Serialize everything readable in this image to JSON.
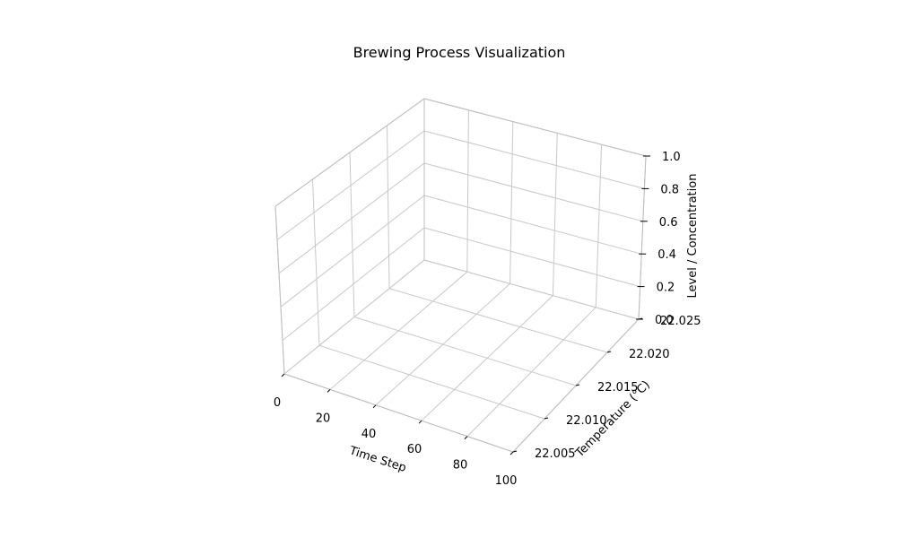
{
  "chart_data": {
    "type": "scatter",
    "title": "Brewing Process Visualization",
    "xlabel": "Time Step",
    "ylabel": "Temperature (°C)",
    "zlabel": "Level / Concentration",
    "x_ticks": [
      "0",
      "20",
      "40",
      "60",
      "80",
      "100"
    ],
    "y_ticks": [
      "22.005",
      "22.010",
      "22.015",
      "22.020",
      "22.025"
    ],
    "z_ticks": [
      "0.0",
      "0.2",
      "0.4",
      "0.6",
      "0.8",
      "1.0"
    ],
    "xlim": [
      0,
      100
    ],
    "ylim": [
      22.005,
      22.025
    ],
    "zlim": [
      0,
      1
    ],
    "grid": true,
    "series": []
  }
}
